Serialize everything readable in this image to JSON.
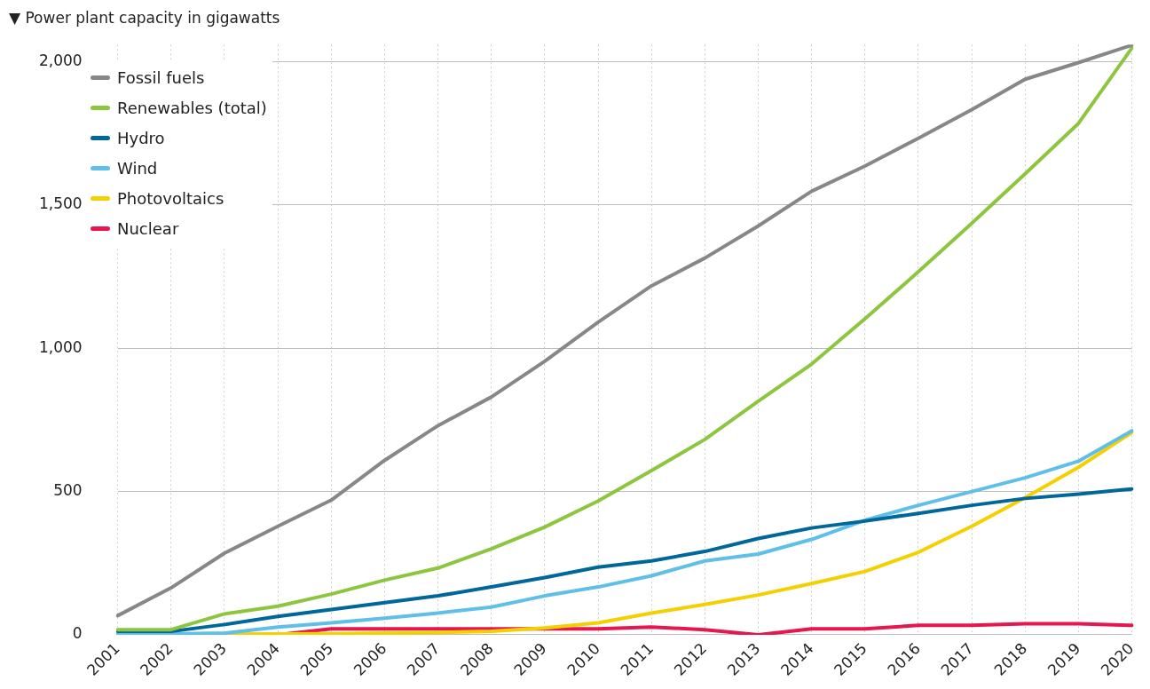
{
  "chart_data": {
    "type": "line",
    "title": "▼ Power plant capacity in gigawatts",
    "categories": [
      "2001",
      "2002",
      "2003",
      "2004",
      "2005",
      "2006",
      "2007",
      "2008",
      "2009",
      "2010",
      "2011",
      "2012",
      "2013",
      "2014",
      "2015",
      "2016",
      "2017",
      "2018",
      "2019",
      "2020"
    ],
    "series": [
      {
        "name": "Fossil fuels",
        "color": "#878787",
        "values": [
          67,
          164,
          285,
          379,
          470,
          609,
          730,
          830,
          955,
          1091,
          1218,
          1315,
          1427,
          1548,
          1636,
          1733,
          1833,
          1939,
          1997,
          2058
        ]
      },
      {
        "name": "Renewables (total)",
        "color": "#8cc63f",
        "values": [
          18,
          18,
          73,
          100,
          142,
          191,
          233,
          300,
          376,
          467,
          573,
          682,
          815,
          945,
          1103,
          1267,
          1436,
          1609,
          1785,
          2048
        ]
      },
      {
        "name": "Hydro",
        "color": "#00679a",
        "values": [
          12,
          12,
          36,
          64,
          88,
          112,
          136,
          167,
          200,
          236,
          258,
          291,
          336,
          373,
          397,
          424,
          452,
          476,
          491,
          509
        ]
      },
      {
        "name": "Wind",
        "color": "#5fbfe8",
        "values": [
          3,
          3,
          6,
          27,
          42,
          58,
          76,
          97,
          136,
          167,
          206,
          258,
          282,
          333,
          400,
          452,
          500,
          548,
          606,
          712
        ]
      },
      {
        "name": "Photovoltaics",
        "color": "#f5d000",
        "values": [
          1,
          2,
          2,
          3,
          4,
          6,
          8,
          12,
          24,
          42,
          76,
          106,
          139,
          179,
          221,
          288,
          379,
          479,
          585,
          706
        ]
      },
      {
        "name": "Nuclear",
        "color": "#e5174e",
        "values": [
          null,
          null,
          0,
          0,
          21,
          21,
          21,
          21,
          21,
          21,
          27,
          18,
          0,
          21,
          21,
          33,
          33,
          39,
          39,
          33
        ]
      }
    ],
    "ylim": [
      0,
      2060
    ],
    "yticks": [
      {
        "value": 0,
        "label": "0"
      },
      {
        "value": 500,
        "label": "500"
      },
      {
        "value": 1000,
        "label": "1,000"
      },
      {
        "value": 1500,
        "label": "1,500"
      },
      {
        "value": 2000,
        "label": "2,000"
      }
    ],
    "grid": true,
    "legend": "top left",
    "marker": "none",
    "line_style": "solid"
  }
}
